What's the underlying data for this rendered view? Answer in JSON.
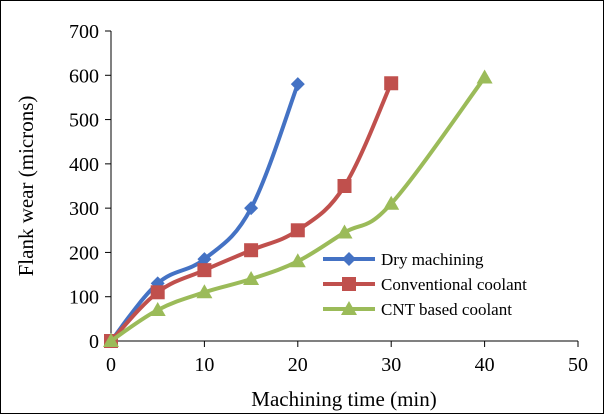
{
  "chart_data": {
    "type": "line",
    "xlabel": "Machining time (min)",
    "ylabel": "Flank wear (microns)",
    "xlim": [
      0,
      50
    ],
    "ylim": [
      0,
      700
    ],
    "xticks": [
      0,
      10,
      20,
      30,
      40,
      50
    ],
    "yticks": [
      0,
      100,
      200,
      300,
      400,
      500,
      600,
      700
    ],
    "grid": false,
    "legend_position": "bottom-right",
    "smooth_lines": true,
    "series": [
      {
        "name": "Dry machining",
        "marker": "diamond",
        "color": "#4472C4",
        "x": [
          0,
          5,
          10,
          15,
          20
        ],
        "y": [
          0,
          130,
          185,
          300,
          580
        ]
      },
      {
        "name": "Conventional coolant",
        "marker": "square",
        "color": "#C0504D",
        "x": [
          0,
          5,
          10,
          15,
          20,
          25,
          30
        ],
        "y": [
          0,
          110,
          160,
          205,
          250,
          350,
          582
        ]
      },
      {
        "name": "CNT based coolant",
        "marker": "triangle",
        "color": "#9BBB59",
        "x": [
          0,
          5,
          10,
          15,
          20,
          25,
          30,
          40
        ],
        "y": [
          0,
          70,
          110,
          140,
          180,
          245,
          310,
          595
        ]
      }
    ]
  }
}
